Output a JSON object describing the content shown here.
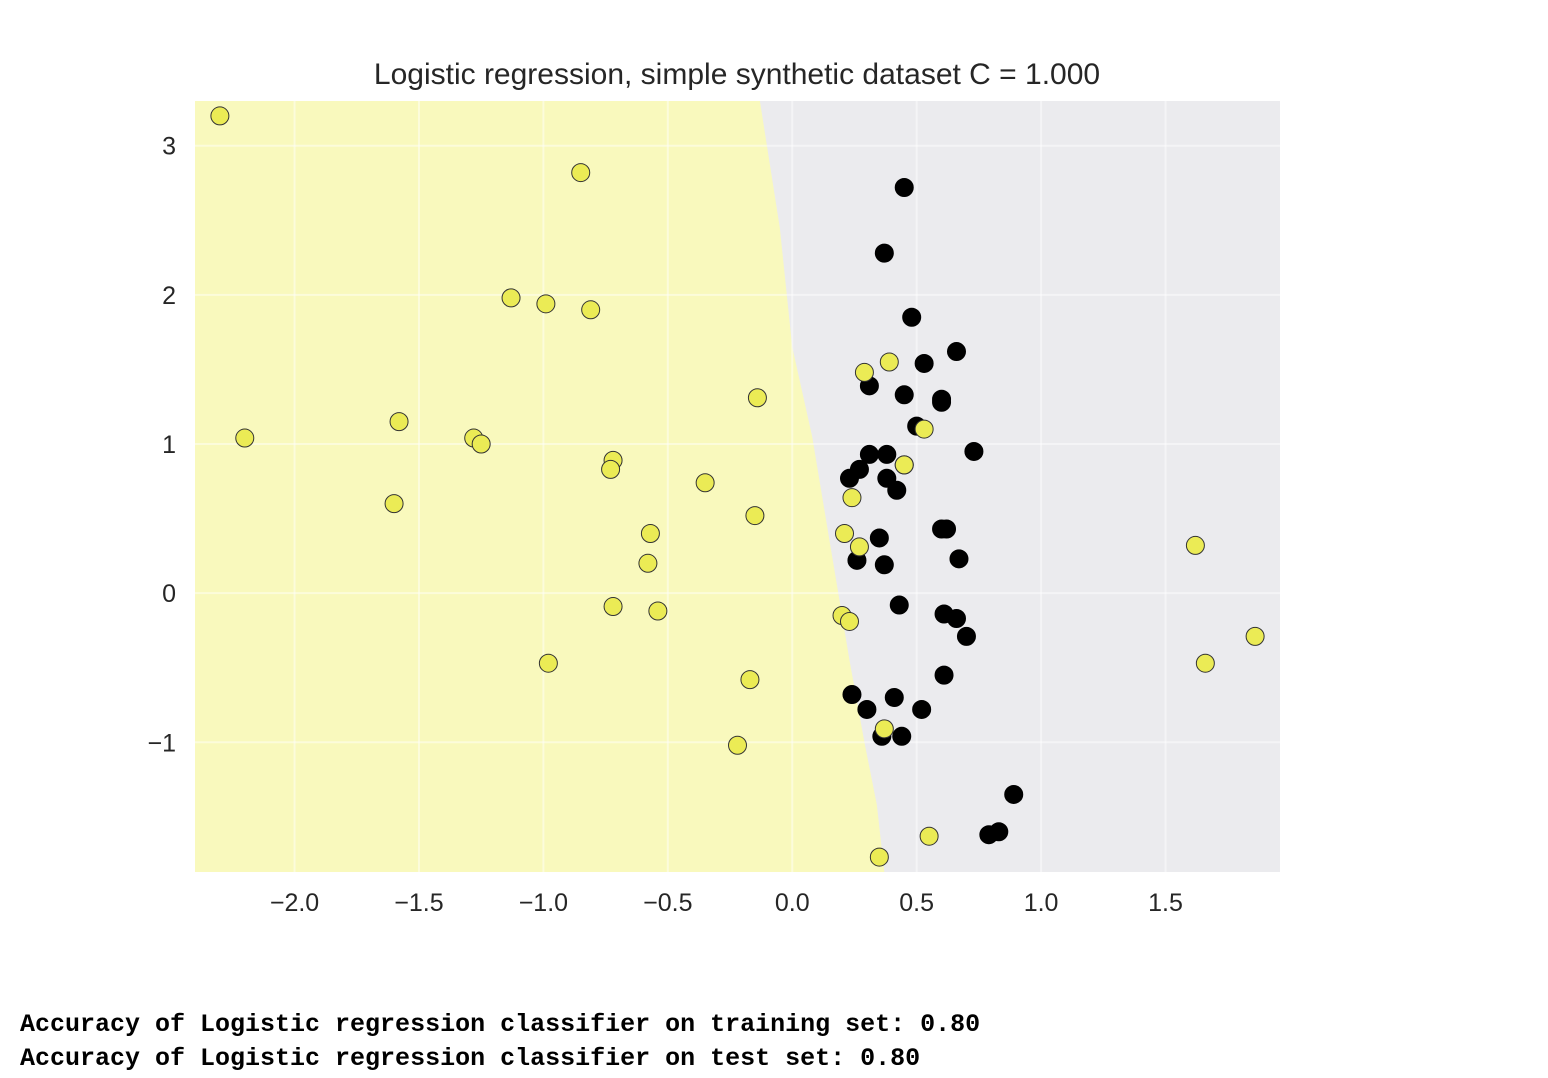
{
  "chart_data": {
    "type": "scatter",
    "title": "Logistic regression, simple synthetic dataset C = 1.000",
    "xlabel": "",
    "ylabel": "",
    "xlim": [
      -2.4,
      1.96
    ],
    "ylim": [
      -1.87,
      3.3
    ],
    "xticks": [
      -2.0,
      -1.5,
      -1.0,
      -0.5,
      0.0,
      0.5,
      1.0,
      1.5
    ],
    "xtick_labels": [
      "−2.0",
      "−1.5",
      "−1.0",
      "−0.5",
      "0.0",
      "0.5",
      "1.0",
      "1.5"
    ],
    "yticks": [
      -1,
      0,
      1,
      2,
      3
    ],
    "ytick_labels": [
      "−1",
      "0",
      "1",
      "2",
      "3"
    ],
    "grid": true,
    "background_color": "#eaeaf2",
    "decision_regions": {
      "class_1_color": "#f9f9bd",
      "class_0_color": "#ebebee",
      "boundary": [
        [
          0.37,
          -1.87
        ],
        [
          0.34,
          -1.42
        ],
        [
          0.29,
          -1.0
        ],
        [
          0.23,
          -0.45
        ],
        [
          0.16,
          0.25
        ],
        [
          0.08,
          1.05
        ],
        [
          0.0,
          1.65
        ],
        [
          -0.05,
          2.45
        ],
        [
          -0.13,
          3.3
        ]
      ]
    },
    "series": [
      {
        "color": "#000000",
        "marker_edge": "#000000",
        "points": [
          [
            0.45,
            2.72
          ],
          [
            0.37,
            2.28
          ],
          [
            0.48,
            1.85
          ],
          [
            0.66,
            1.62
          ],
          [
            0.53,
            1.54
          ],
          [
            0.31,
            1.39
          ],
          [
            0.45,
            1.33
          ],
          [
            0.6,
            1.3
          ],
          [
            0.6,
            1.28
          ],
          [
            0.5,
            1.12
          ],
          [
            0.73,
            0.95
          ],
          [
            0.31,
            0.93
          ],
          [
            0.38,
            0.93
          ],
          [
            0.45,
            0.86
          ],
          [
            0.27,
            0.83
          ],
          [
            0.23,
            0.77
          ],
          [
            0.38,
            0.77
          ],
          [
            0.42,
            0.69
          ],
          [
            0.6,
            0.43
          ],
          [
            0.62,
            0.43
          ],
          [
            0.35,
            0.37
          ],
          [
            0.67,
            0.23
          ],
          [
            0.26,
            0.22
          ],
          [
            0.37,
            0.19
          ],
          [
            0.43,
            -0.08
          ],
          [
            0.61,
            -0.14
          ],
          [
            0.66,
            -0.17
          ],
          [
            0.7,
            -0.29
          ],
          [
            0.61,
            -0.55
          ],
          [
            0.24,
            -0.68
          ],
          [
            0.41,
            -0.7
          ],
          [
            0.3,
            -0.78
          ],
          [
            0.52,
            -0.78
          ],
          [
            0.36,
            -0.96
          ],
          [
            0.44,
            -0.96
          ],
          [
            0.89,
            -1.35
          ],
          [
            0.83,
            -1.6
          ],
          [
            0.79,
            -1.62
          ]
        ]
      },
      {
        "color": "#ebeb55",
        "marker_edge": "#333333",
        "points": [
          [
            -2.3,
            3.2
          ],
          [
            -0.85,
            2.82
          ],
          [
            -1.13,
            1.98
          ],
          [
            -0.99,
            1.94
          ],
          [
            -0.81,
            1.9
          ],
          [
            -2.2,
            1.04
          ],
          [
            -1.58,
            1.15
          ],
          [
            -1.28,
            1.04
          ],
          [
            -1.25,
            1.0
          ],
          [
            -1.6,
            0.6
          ],
          [
            -0.14,
            1.31
          ],
          [
            -0.72,
            0.89
          ],
          [
            -0.73,
            0.83
          ],
          [
            -0.35,
            0.74
          ],
          [
            -0.15,
            0.52
          ],
          [
            -0.57,
            0.4
          ],
          [
            -0.58,
            0.2
          ],
          [
            -0.72,
            -0.09
          ],
          [
            -0.54,
            -0.12
          ],
          [
            -0.98,
            -0.47
          ],
          [
            -0.17,
            -0.58
          ],
          [
            -0.22,
            -1.02
          ],
          [
            0.39,
            1.55
          ],
          [
            0.29,
            1.48
          ],
          [
            0.53,
            1.1
          ],
          [
            0.45,
            0.86
          ],
          [
            0.24,
            0.64
          ],
          [
            0.21,
            0.4
          ],
          [
            0.27,
            0.31
          ],
          [
            0.2,
            -0.15
          ],
          [
            0.23,
            -0.19
          ],
          [
            0.37,
            -0.91
          ],
          [
            0.55,
            -1.63
          ],
          [
            0.35,
            -1.77
          ],
          [
            1.62,
            0.32
          ],
          [
            1.86,
            -0.29
          ],
          [
            1.66,
            -0.47
          ]
        ]
      }
    ]
  },
  "output": {
    "train_line": "Accuracy of Logistic regression classifier on training set: 0.80",
    "test_line": "Accuracy of Logistic regression classifier on test set: 0.80"
  }
}
